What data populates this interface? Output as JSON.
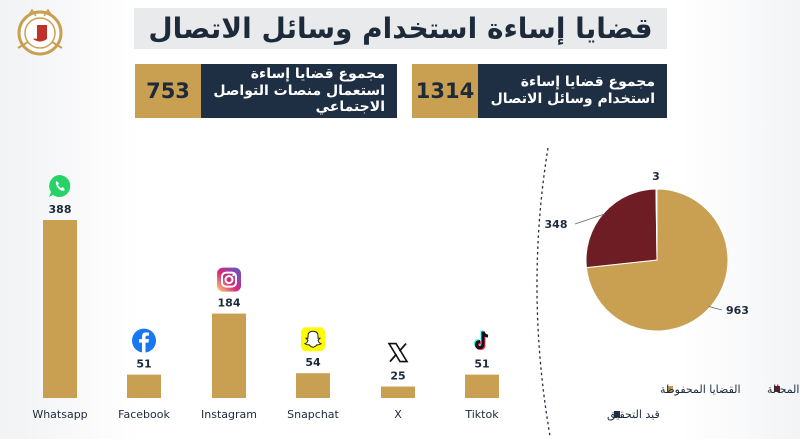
{
  "title": "قضايا إساءة استخدام وسائل الاتصال",
  "stats": [
    {
      "label": "مجموع قضايا إساءة استخدام وسائل الاتصال",
      "value": "1314"
    },
    {
      "label": "مجموع قضايا إساءة استعمال منصات التواصل الاجتماعي",
      "value": "753"
    }
  ],
  "colors": {
    "navy": "#1f2f43",
    "gold": "#c9a052",
    "maroon": "#6d1d23",
    "title_bg": "#e9eaec"
  },
  "chart_data": [
    {
      "type": "bar",
      "categories": [
        "Whatsapp",
        "Facebook",
        "Instagram",
        "Snapchat",
        "X",
        "Tiktok"
      ],
      "values": [
        388,
        51,
        184,
        54,
        25,
        51
      ],
      "icons": [
        "whatsapp-icon",
        "facebook-icon",
        "instagram-icon",
        "snapchat-icon",
        "x-icon",
        "tiktok-icon"
      ],
      "bar_color": "#c9a052",
      "ylim": [
        0,
        388
      ]
    },
    {
      "type": "pie",
      "labels": [
        "القضايا المحفوظة",
        "القضايا المحالة",
        "قيد التحقيق"
      ],
      "values": [
        963,
        348,
        3
      ],
      "colors": [
        "#c9a052",
        "#6d1d23",
        "#1f2f43"
      ],
      "legend_position": "bottom-right"
    }
  ]
}
